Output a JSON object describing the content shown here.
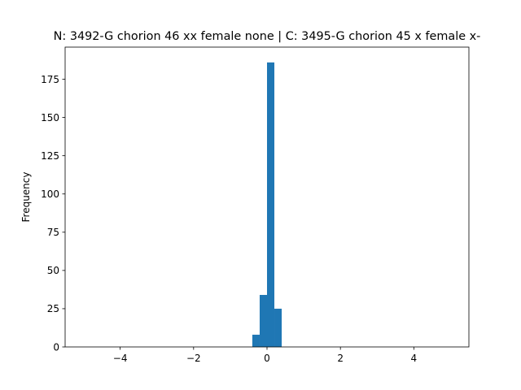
{
  "chart_data": {
    "type": "bar",
    "title": "N: 3492-G chorion 46 xx female none | C: 3495-G chorion 45 x female x-",
    "xlabel": "",
    "ylabel": "Frequency",
    "xlim": [
      -5.5,
      5.5
    ],
    "ylim": [
      0,
      196
    ],
    "xticks": [
      -4,
      -2,
      0,
      2,
      4
    ],
    "xtick_labels": [
      "−4",
      "−2",
      "0",
      "2",
      "4"
    ],
    "yticks": [
      0,
      25,
      50,
      75,
      100,
      125,
      150,
      175
    ],
    "bar_width": 0.2,
    "bar_color": "#1f77b4",
    "bins": [
      {
        "left": -0.4,
        "right": -0.2,
        "count": 8
      },
      {
        "left": -0.2,
        "right": 0.0,
        "count": 34
      },
      {
        "left": 0.0,
        "right": 0.2,
        "count": 186
      },
      {
        "left": 0.2,
        "right": 0.4,
        "count": 25
      }
    ],
    "grid": false,
    "legend": "none"
  }
}
